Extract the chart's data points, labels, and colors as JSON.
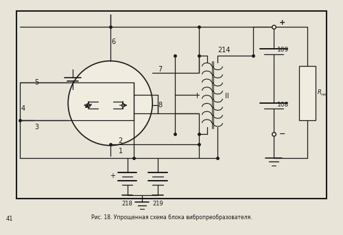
{
  "bg_color": "#f0ece0",
  "page_bg": "#e8e4d8",
  "line_color": "#1a1a1a",
  "caption_text": "Рис. 18. Упрощенная схема блока вибропреобразователя.",
  "page_number": "41",
  "figsize": [
    5.0,
    3.42
  ],
  "dpi": 100
}
